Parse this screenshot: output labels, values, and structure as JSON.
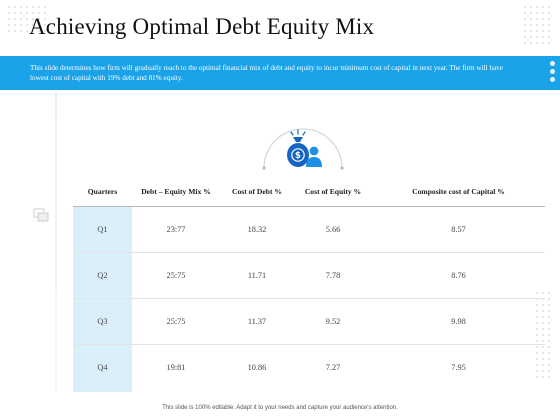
{
  "title": "Achieving Optimal Debt Equity Mix",
  "banner_text": "This slide determines how firm will gradually reach to the optimal financial mix of debt and equity to incur minimum cost of capital in next year. The firm will have lowest cost of capital with 19% debt and 81% equity.",
  "colors": {
    "accent": "#1aa3e8",
    "quarter_column": "#dbeffb",
    "icon_dark": "#1565c0"
  },
  "emblem_icon": "money-bag-person-icon",
  "table": {
    "headers": [
      "Quarters",
      "Debt – Equity Mix %",
      "Cost of Debt %",
      "Cost of Equity %",
      "Composite cost of Capital %"
    ],
    "rows": [
      [
        "Q1",
        "23:77",
        "18.32",
        "5.66",
        "8.57"
      ],
      [
        "Q2",
        "25:75",
        "11.71",
        "7.78",
        "8.76"
      ],
      [
        "Q3",
        "25:75",
        "11.37",
        "9.52",
        "9.98"
      ],
      [
        "Q4",
        "19:81",
        "10.86",
        "7.27",
        "7.95"
      ]
    ]
  },
  "footer": "This slide is 100% editable. Adapt it to your needs and capture your audience's attention."
}
